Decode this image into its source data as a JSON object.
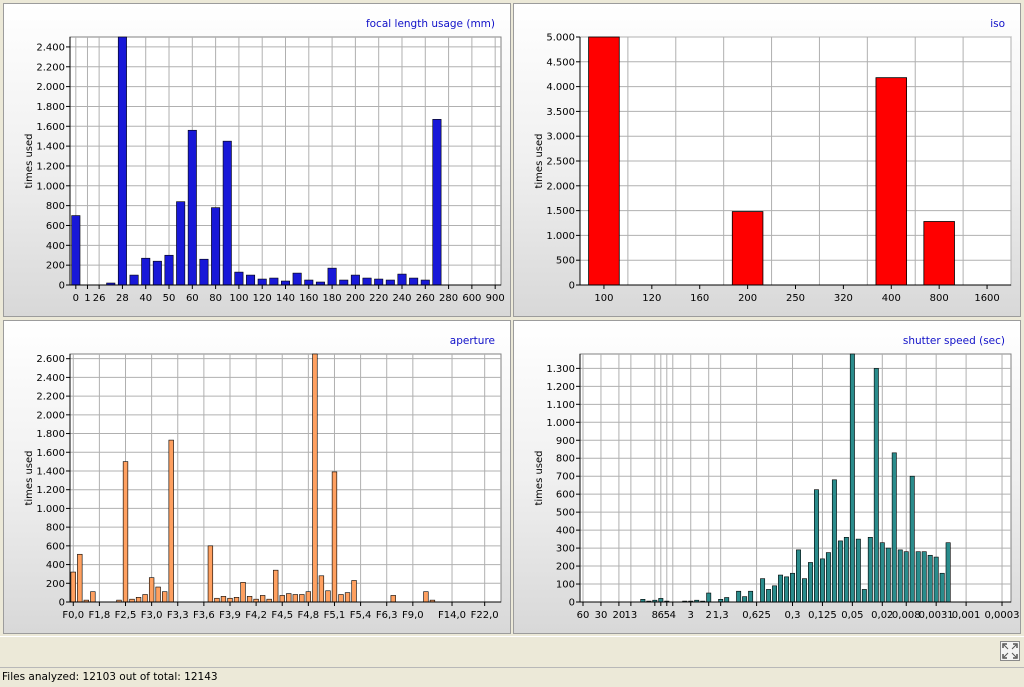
{
  "status_bar": {
    "text": "Files analyzed: 12103 out of total: 12143"
  },
  "toolbar": {
    "fit_icon": "fit-to-window-icon"
  },
  "chart_data": [
    {
      "id": "focal",
      "type": "bar",
      "title": "focal length usage (mm)",
      "ylabel": "times used",
      "color": "#1818d8",
      "ylim": [
        0,
        2500
      ],
      "yticks": [
        0,
        200,
        400,
        600,
        800,
        1000,
        1200,
        1400,
        1600,
        1800,
        2000,
        2200,
        2400
      ],
      "ytick_labels": [
        "0",
        "200",
        "400",
        "600",
        "800",
        "1.000",
        "1.200",
        "1.400",
        "1.600",
        "1.800",
        "2.000",
        "2.200",
        "2.400"
      ],
      "xticks": [
        {
          "pos": 0,
          "label": "0"
        },
        {
          "pos": 1,
          "label": "1"
        },
        {
          "pos": 2,
          "label": "26"
        },
        {
          "pos": 4,
          "label": "28"
        },
        {
          "pos": 6,
          "label": "40"
        },
        {
          "pos": 8,
          "label": "50"
        },
        {
          "pos": 10,
          "label": "60"
        },
        {
          "pos": 12,
          "label": "80"
        },
        {
          "pos": 14,
          "label": "100"
        },
        {
          "pos": 16,
          "label": "120"
        },
        {
          "pos": 18,
          "label": "140"
        },
        {
          "pos": 20,
          "label": "160"
        },
        {
          "pos": 22,
          "label": "180"
        },
        {
          "pos": 24,
          "label": "200"
        },
        {
          "pos": 26,
          "label": "220"
        },
        {
          "pos": 28,
          "label": "240"
        },
        {
          "pos": 30,
          "label": "260"
        },
        {
          "pos": 32,
          "label": "280"
        },
        {
          "pos": 34,
          "label": "600"
        },
        {
          "pos": 36,
          "label": "900"
        }
      ],
      "slots": 37,
      "values": [
        700,
        0,
        0,
        20,
        2500,
        100,
        270,
        240,
        300,
        840,
        1560,
        260,
        780,
        1450,
        130,
        100,
        60,
        70,
        40,
        120,
        50,
        30,
        170,
        50,
        100,
        70,
        60,
        50,
        110,
        70,
        50,
        1670,
        0,
        0,
        0,
        0,
        0
      ]
    },
    {
      "id": "iso",
      "type": "bar",
      "title": "iso",
      "ylabel": "times used",
      "color": "#ff0000",
      "ylim": [
        0,
        5000
      ],
      "yticks": [
        0,
        500,
        1000,
        1500,
        2000,
        2500,
        3000,
        3500,
        4000,
        4500,
        5000
      ],
      "ytick_labels": [
        "0",
        "500",
        "1.000",
        "1.500",
        "2.000",
        "2.500",
        "3.000",
        "3.500",
        "4.000",
        "4.500",
        "5.000"
      ],
      "categories": [
        "100",
        "120",
        "160",
        "200",
        "250",
        "320",
        "400",
        "800",
        "1600"
      ],
      "values": [
        5050,
        0,
        0,
        1480,
        0,
        0,
        4180,
        1280,
        0
      ]
    },
    {
      "id": "aperture",
      "type": "bar",
      "title": "aperture",
      "ylabel": "times used",
      "color": "#ffa060",
      "ylim": [
        0,
        2650
      ],
      "yticks": [
        0,
        200,
        400,
        600,
        800,
        1000,
        1200,
        1400,
        1600,
        1800,
        2000,
        2200,
        2400,
        2600
      ],
      "ytick_labels": [
        "0",
        "200",
        "400",
        "600",
        "800",
        "1.000",
        "1.200",
        "1.400",
        "1.600",
        "1.800",
        "2.000",
        "2.200",
        "2.400",
        "2.600"
      ],
      "xticks": [
        {
          "pos": 0,
          "label": "F0,0"
        },
        {
          "pos": 4,
          "label": "F1,8"
        },
        {
          "pos": 8,
          "label": "F2,5"
        },
        {
          "pos": 12,
          "label": "F3,0"
        },
        {
          "pos": 16,
          "label": "F3,3"
        },
        {
          "pos": 20,
          "label": "F3,6"
        },
        {
          "pos": 24,
          "label": "F3,9"
        },
        {
          "pos": 28,
          "label": "F4,2"
        },
        {
          "pos": 32,
          "label": "F4,5"
        },
        {
          "pos": 36,
          "label": "F4,8"
        },
        {
          "pos": 40,
          "label": "F5,1"
        },
        {
          "pos": 44,
          "label": "F5,4"
        },
        {
          "pos": 48,
          "label": "F6,3"
        },
        {
          "pos": 52,
          "label": "F9,0"
        },
        {
          "pos": 58,
          "label": "F14,0"
        },
        {
          "pos": 63,
          "label": "F22,0"
        }
      ],
      "slots": 66,
      "values": [
        320,
        510,
        20,
        110,
        0,
        0,
        0,
        20,
        1500,
        30,
        50,
        80,
        260,
        160,
        110,
        1730,
        0,
        0,
        0,
        0,
        0,
        600,
        40,
        60,
        40,
        50,
        210,
        60,
        30,
        70,
        30,
        340,
        70,
        90,
        80,
        80,
        110,
        2650,
        280,
        120,
        1390,
        80,
        100,
        230,
        0,
        0,
        0,
        0,
        0,
        70,
        0,
        0,
        0,
        0,
        110,
        20,
        0,
        0,
        0,
        0,
        0,
        0,
        0,
        0,
        0,
        0
      ]
    },
    {
      "id": "shutter",
      "type": "bar",
      "title": "shutter speed (sec)",
      "ylabel": "times used",
      "color": "#2a8c8c",
      "ylim": [
        0,
        1380
      ],
      "yticks": [
        0,
        100,
        200,
        300,
        400,
        500,
        600,
        700,
        800,
        900,
        1000,
        1100,
        1200,
        1300
      ],
      "ytick_labels": [
        "0",
        "100",
        "200",
        "300",
        "400",
        "500",
        "600",
        "700",
        "800",
        "900",
        "1.000",
        "1.100",
        "1.200",
        "1.300"
      ],
      "xticks": [
        {
          "pos": 0,
          "label": "60"
        },
        {
          "pos": 3,
          "label": "30"
        },
        {
          "pos": 6,
          "label": "20"
        },
        {
          "pos": 8,
          "label": "13"
        },
        {
          "pos": 12,
          "label": "8"
        },
        {
          "pos": 13,
          "label": "6"
        },
        {
          "pos": 14,
          "label": "5"
        },
        {
          "pos": 15,
          "label": "4"
        },
        {
          "pos": 18,
          "label": "3"
        },
        {
          "pos": 21,
          "label": "2"
        },
        {
          "pos": 23,
          "label": "1,3"
        },
        {
          "pos": 29,
          "label": "0,625"
        },
        {
          "pos": 35,
          "label": "0,3"
        },
        {
          "pos": 40,
          "label": "0,125"
        },
        {
          "pos": 45,
          "label": "0,05"
        },
        {
          "pos": 50,
          "label": "0,02"
        },
        {
          "pos": 54,
          "label": "0,008"
        },
        {
          "pos": 59,
          "label": "0,0031"
        },
        {
          "pos": 64,
          "label": "0,001"
        },
        {
          "pos": 70,
          "label": "0,0003"
        }
      ],
      "slots": 72,
      "values": [
        0,
        0,
        0,
        0,
        0,
        0,
        0,
        0,
        0,
        0,
        15,
        5,
        10,
        20,
        5,
        0,
        0,
        5,
        5,
        10,
        5,
        50,
        0,
        15,
        25,
        0,
        60,
        30,
        60,
        0,
        130,
        70,
        90,
        150,
        140,
        160,
        290,
        130,
        220,
        625,
        240,
        275,
        680,
        340,
        360,
        1380,
        350,
        70,
        360,
        1300,
        330,
        300,
        830,
        290,
        280,
        700,
        280,
        280,
        260,
        250,
        160,
        330,
        0,
        0,
        0,
        0,
        0,
        0,
        0,
        0,
        0,
        0
      ]
    }
  ]
}
